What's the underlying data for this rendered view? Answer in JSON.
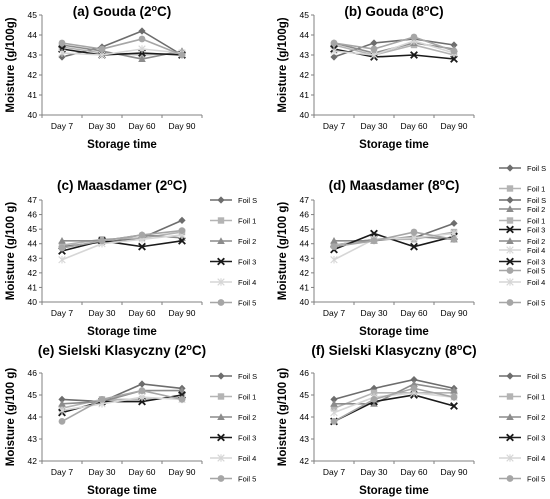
{
  "palette": {
    "Foil S": "#6d6d6d",
    "Foil 1": "#b4b4b4",
    "Foil 2": "#8c8c8c",
    "Foil 3": "#1a1a1a",
    "Foil 4": "#d6d6d6",
    "Foil 5": "#a6a6a6"
  },
  "markers": {
    "Foil S": "diamond",
    "Foil 1": "square",
    "Foil 2": "triangle",
    "Foil 3": "x",
    "Foil 4": "star",
    "Foil 5": "circle"
  },
  "chart_data": [
    {
      "type": "line",
      "title": "(a) Gouda (2°C)",
      "xlabel": "Storage time",
      "ylabel": "Moisture (g/100g)",
      "categories": [
        "Day 7",
        "Day 30",
        "Day 60",
        "Day 90"
      ],
      "ylim": [
        40,
        45
      ],
      "ytick_step": 1,
      "legend": "none",
      "series": [
        {
          "name": "Foil S",
          "values": [
            42.9,
            43.4,
            44.2,
            43.0
          ]
        },
        {
          "name": "Foil 1",
          "values": [
            43.4,
            43.1,
            43.0,
            43.1
          ]
        },
        {
          "name": "Foil 2",
          "values": [
            43.5,
            43.2,
            42.8,
            43.2
          ]
        },
        {
          "name": "Foil 3",
          "values": [
            43.3,
            43.0,
            43.1,
            43.0
          ]
        },
        {
          "name": "Foil 4",
          "values": [
            43.1,
            43.0,
            43.3,
            43.1
          ]
        },
        {
          "name": "Foil 5",
          "values": [
            43.6,
            43.3,
            43.8,
            43.0
          ]
        }
      ]
    },
    {
      "type": "line",
      "title": "(b) Gouda (8°C)",
      "xlabel": "Storage time",
      "ylabel": "Moisture (g/100g)",
      "categories": [
        "Day 7",
        "Day 30",
        "Day 60",
        "Day 90"
      ],
      "ylim": [
        40,
        45
      ],
      "ytick_step": 1,
      "legend": "right",
      "series": [
        {
          "name": "Foil S",
          "values": [
            42.9,
            43.6,
            43.8,
            43.5
          ]
        },
        {
          "name": "Foil 1",
          "values": [
            43.5,
            43.0,
            43.5,
            43.0
          ]
        },
        {
          "name": "Foil 2",
          "values": [
            43.6,
            43.1,
            43.6,
            43.3
          ]
        },
        {
          "name": "Foil 3",
          "values": [
            43.3,
            42.9,
            43.0,
            42.8
          ]
        },
        {
          "name": "Foil 4",
          "values": [
            43.2,
            43.0,
            43.7,
            43.1
          ]
        },
        {
          "name": "Foil 5",
          "values": [
            43.6,
            43.3,
            43.9,
            43.2
          ]
        }
      ]
    },
    {
      "type": "line",
      "title": "(c) Maasdamer (2°C)",
      "xlabel": "Storage time",
      "ylabel": "Moisture (g/100 g)",
      "categories": [
        "Day 7",
        "Day 30",
        "Day 60",
        "Day 90"
      ],
      "ylim": [
        40,
        47
      ],
      "ytick_step": 1,
      "legend": "right",
      "series": [
        {
          "name": "Foil S",
          "values": [
            43.8,
            44.1,
            44.4,
            45.6
          ]
        },
        {
          "name": "Foil 1",
          "values": [
            43.9,
            44.3,
            44.4,
            44.8
          ]
        },
        {
          "name": "Foil 2",
          "values": [
            44.2,
            44.2,
            44.6,
            44.4
          ]
        },
        {
          "name": "Foil 3",
          "values": [
            43.5,
            44.2,
            43.8,
            44.2
          ]
        },
        {
          "name": "Foil 4",
          "values": [
            42.9,
            44.0,
            44.3,
            44.6
          ]
        },
        {
          "name": "Foil 5",
          "values": [
            43.7,
            44.2,
            44.6,
            44.9
          ]
        }
      ]
    },
    {
      "type": "line",
      "title": "(d) Maasdamer (8°C)",
      "xlabel": "Storage time",
      "ylabel": "Moisture (g/100 g)",
      "categories": [
        "Day 7",
        "Day 30",
        "Day 60",
        "Day 90"
      ],
      "ylim": [
        40,
        47
      ],
      "ytick_step": 1,
      "legend": "right",
      "series": [
        {
          "name": "Foil S",
          "values": [
            43.9,
            44.3,
            44.4,
            45.4
          ]
        },
        {
          "name": "Foil 1",
          "values": [
            43.9,
            44.3,
            44.3,
            44.8
          ]
        },
        {
          "name": "Foil 2",
          "values": [
            44.2,
            44.2,
            44.5,
            44.3
          ]
        },
        {
          "name": "Foil 3",
          "values": [
            43.6,
            44.7,
            43.8,
            44.5
          ]
        },
        {
          "name": "Foil 4",
          "values": [
            42.9,
            44.3,
            44.4,
            44.7
          ]
        },
        {
          "name": "Foil 5",
          "values": [
            43.8,
            44.2,
            44.8,
            44.3
          ]
        }
      ]
    },
    {
      "type": "line",
      "title": "(e) Sielski Klasyczny (2°C)",
      "xlabel": "Storage time",
      "ylabel": "Moisture (g/100 g)",
      "categories": [
        "Day 7",
        "Day 30",
        "Day 60",
        "Day 90"
      ],
      "ylim": [
        42,
        46
      ],
      "ytick_step": 1,
      "legend": "right",
      "series": [
        {
          "name": "Foil S",
          "values": [
            44.8,
            44.7,
            45.5,
            45.3
          ]
        },
        {
          "name": "Foil 1",
          "values": [
            44.4,
            44.8,
            44.8,
            44.9
          ]
        },
        {
          "name": "Foil 2",
          "values": [
            44.6,
            44.7,
            45.2,
            45.2
          ]
        },
        {
          "name": "Foil 3",
          "values": [
            44.2,
            44.7,
            44.7,
            45.0
          ]
        },
        {
          "name": "Foil 4",
          "values": [
            44.3,
            44.6,
            44.9,
            44.8
          ]
        },
        {
          "name": "Foil 5",
          "values": [
            43.8,
            44.8,
            45.2,
            44.8
          ]
        }
      ]
    },
    {
      "type": "line",
      "title": "(f) Sielski Klasyczny (8°C)",
      "xlabel": "Storage time",
      "ylabel": "Moisture (g/100 g)",
      "categories": [
        "Day 7",
        "Day 30",
        "Day 60",
        "Day 90"
      ],
      "ylim": [
        42,
        46
      ],
      "ytick_step": 1,
      "legend": "right",
      "series": [
        {
          "name": "Foil S",
          "values": [
            44.8,
            45.3,
            45.7,
            45.3
          ]
        },
        {
          "name": "Foil 1",
          "values": [
            44.4,
            45.1,
            45.1,
            45.1
          ]
        },
        {
          "name": "Foil 2",
          "values": [
            44.6,
            44.6,
            45.5,
            45.2
          ]
        },
        {
          "name": "Foil 3",
          "values": [
            43.8,
            44.7,
            45.0,
            44.5
          ]
        },
        {
          "name": "Foil 4",
          "values": [
            44.2,
            44.9,
            45.1,
            44.9
          ]
        },
        {
          "name": "Foil 5",
          "values": [
            43.8,
            44.8,
            45.3,
            44.9
          ]
        }
      ]
    }
  ]
}
